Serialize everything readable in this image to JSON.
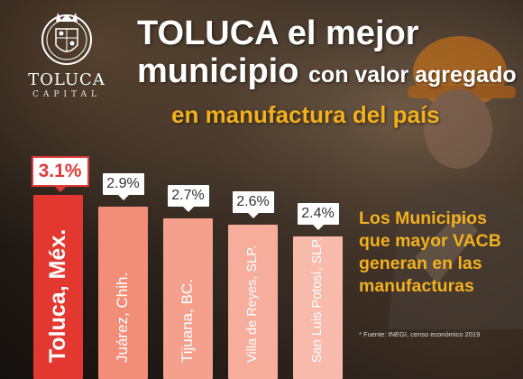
{
  "header": {
    "logo_word": "TOLUCA",
    "logo_sub": "CAPITAL",
    "title_line1": "TOLUCA el mejor",
    "title_line2_big": "municipio",
    "title_line2_small": "con valor agregado",
    "subtitle": "en manufactura del país"
  },
  "side_note": {
    "lines": [
      "Los Municipios",
      "que mayor VACB",
      "generan en las",
      "manufacturas"
    ]
  },
  "source": "* Fuente: INEGI, censo económico 2019",
  "colors": {
    "highlight": "#e13a3a",
    "bars": [
      "#e3382f",
      "#f28e78",
      "#f4a08c",
      "#f6ad9c",
      "#f8bbab"
    ],
    "accent": "#f2b01e"
  },
  "chart_data": {
    "type": "bar",
    "categories": [
      "Toluca, Méx.",
      "Juárez, Chih.",
      "Tijuana, BC.",
      "Villa de Reyes, SLP.",
      "San Luis Potosí, SLP."
    ],
    "values": [
      3.1,
      2.9,
      2.7,
      2.6,
      2.4
    ],
    "value_labels": [
      "3.1%",
      "2.9%",
      "2.7%",
      "2.6%",
      "2.4%"
    ],
    "unit": "%"
  }
}
